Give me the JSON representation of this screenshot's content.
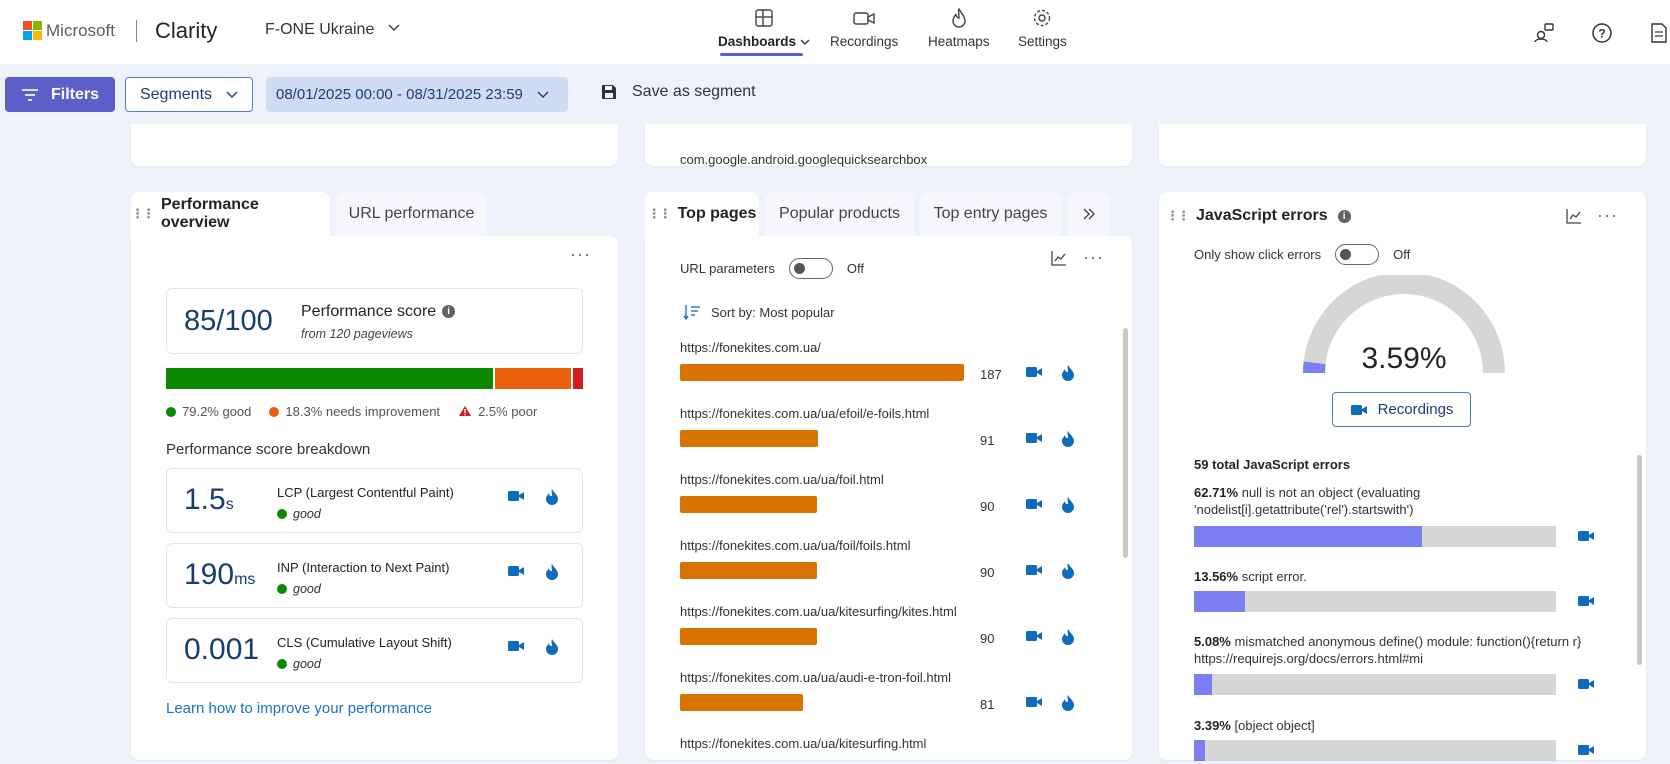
{
  "brand": {
    "company": "Microsoft",
    "product": "Clarity"
  },
  "project": {
    "name": "F-ONE Ukraine"
  },
  "nav": [
    {
      "label": "Dashboards",
      "icon": "dashboard-icon",
      "active": true
    },
    {
      "label": "Recordings",
      "icon": "video-icon",
      "active": false
    },
    {
      "label": "Heatmaps",
      "icon": "flame-icon",
      "active": false
    },
    {
      "label": "Settings",
      "icon": "gear-icon",
      "active": false
    }
  ],
  "toolbar": {
    "filters": "Filters",
    "segments": "Segments",
    "date_range": "08/01/2025 00:00 - 08/31/2025 23:59",
    "save_segment": "Save as segment"
  },
  "top_partial": {
    "referrer": "com.google.android.googlequicksearchbox"
  },
  "performance": {
    "tabs": [
      "Performance overview",
      "URL performance"
    ],
    "score": "85/100",
    "score_label": "Performance score",
    "score_sub": "from 120 pageviews",
    "distribution": {
      "good": 79.2,
      "needs_improvement": 18.3,
      "poor": 2.5
    },
    "legend": {
      "good": "79.2% good",
      "needs": "18.3% needs improvement",
      "poor": "2.5% poor"
    },
    "breakdown_title": "Performance score breakdown",
    "metrics": [
      {
        "value": "1.5",
        "unit": "s",
        "name": "LCP (Largest Contentful Paint)",
        "rating": "good"
      },
      {
        "value": "190",
        "unit": "ms",
        "name": "INP (Interaction to Next Paint)",
        "rating": "good"
      },
      {
        "value": "0.001",
        "unit": "",
        "name": "CLS (Cumulative Layout Shift)",
        "rating": "good"
      }
    ],
    "learn_link": "Learn how to improve your performance"
  },
  "top_pages": {
    "tabs": [
      "Top pages",
      "Popular products",
      "Top entry pages"
    ],
    "url_params_label": "URL parameters",
    "url_params_state": "Off",
    "sort_label": "Sort by: Most popular",
    "max_count": 187,
    "rows": [
      {
        "url": "https://fonekites.com.ua/",
        "count": 187
      },
      {
        "url": "https://fonekites.com.ua/ua/efoil/e-foils.html",
        "count": 91
      },
      {
        "url": "https://fonekites.com.ua/ua/foil.html",
        "count": 90
      },
      {
        "url": "https://fonekites.com.ua/ua/foil/foils.html",
        "count": 90
      },
      {
        "url": "https://fonekites.com.ua/ua/kitesurfing/kites.html",
        "count": 90
      },
      {
        "url": "https://fonekites.com.ua/ua/audi-e-tron-foil.html",
        "count": 81
      },
      {
        "url": "https://fonekites.com.ua/ua/kitesurfing.html",
        "count": null
      }
    ]
  },
  "js_errors": {
    "title": "JavaScript errors",
    "click_toggle_label": "Only show click errors",
    "click_toggle_state": "Off",
    "gauge_value": "3.59%",
    "gauge_fraction": 0.0359,
    "recordings_button": "Recordings",
    "total_label": "59 total JavaScript errors",
    "errors": [
      {
        "pct": "62.71%",
        "fraction": 0.6271,
        "message": "null is not an object (evaluating 'nodelist[i].getattribute('rel').startswith')"
      },
      {
        "pct": "13.56%",
        "fraction": 0.1356,
        "message": "script error."
      },
      {
        "pct": "5.08%",
        "fraction": 0.0508,
        "message": "mismatched anonymous define() module: function(){return r} https://requirejs.org/docs/errors.html#mi"
      },
      {
        "pct": "3.39%",
        "fraction": 0.0339,
        "message": "[object object]"
      }
    ]
  },
  "colors": {
    "accent": "#5b5fc7",
    "good": "#0b8a00",
    "needs": "#e8600b",
    "poor": "#d31c1c",
    "bar_orange": "#d97300",
    "error_bar": "#7b7ff2",
    "link": "#1a73c8",
    "icon_blue": "#0f6cbd"
  }
}
